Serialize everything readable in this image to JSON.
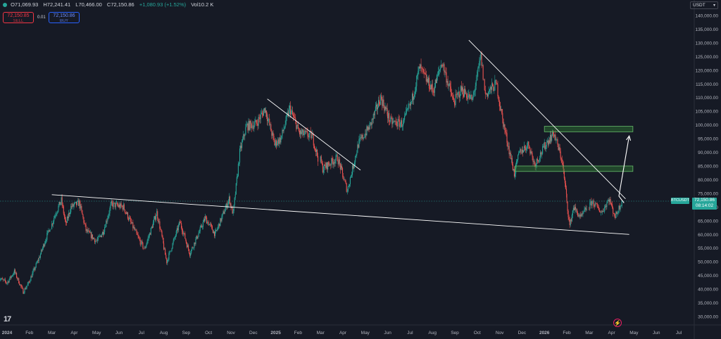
{
  "header": {
    "open": "O71,069.93",
    "high": "H72,241.41",
    "low": "L70,466.00",
    "close": "C72,150.86",
    "change": "+1,080.93 (+1.52%)",
    "volume": "Vol10.2 K"
  },
  "trade": {
    "sell_price": "72,150.85",
    "sell_label": "SELL",
    "spread": "0.01",
    "buy_price": "72,150.86",
    "buy_label": "BUY"
  },
  "currency_select": "USDT",
  "price_tag": {
    "symbol": "BTCUSDT",
    "price": "72,150.86",
    "countdown": "08:14:02"
  },
  "brand": "17",
  "colors": {
    "up": "#26a69a",
    "down": "#ef5350",
    "zone_fill": "#2e7d32",
    "zone_border": "#66bb6a",
    "line": "#ffffff"
  },
  "chart_data": {
    "type": "candlestick",
    "y_ticks": [
      "140,000.00",
      "135,000.00",
      "130,000.00",
      "125,000.00",
      "120,000.00",
      "115,000.00",
      "110,000.00",
      "105,000.00",
      "100,000.00",
      "95,000.00",
      "90,000.00",
      "85,000.00",
      "80,000.00",
      "75,000.00",
      "70,000.00",
      "65,000.00",
      "60,000.00",
      "55,000.00",
      "50,000.00",
      "45,000.00",
      "40,000.00",
      "35,000.00",
      "30,000.00"
    ],
    "y_range": [
      27500,
      142000
    ],
    "x_ticks": [
      "2024",
      "Feb",
      "Mar",
      "Apr",
      "May",
      "Jun",
      "Jul",
      "Aug",
      "Sep",
      "Oct",
      "Nov",
      "Dec",
      "2025",
      "Feb",
      "Mar",
      "Apr",
      "May",
      "Jun",
      "Jul",
      "Aug",
      "Sep",
      "Oct",
      "Nov",
      "Dec",
      "2026",
      "Feb",
      "Mar",
      "Apr",
      "May",
      "Jun",
      "Jul"
    ],
    "x_range": [
      "2024-01",
      "2026-07"
    ],
    "current_price": 72150.86,
    "price_path": [
      [
        "2023-12-20",
        44000
      ],
      [
        "2024-01-01",
        42300
      ],
      [
        "2024-01-11",
        46500
      ],
      [
        "2024-01-23",
        39000
      ],
      [
        "2024-02-01",
        43000
      ],
      [
        "2024-02-15",
        52000
      ],
      [
        "2024-02-28",
        62000
      ],
      [
        "2024-03-05",
        67000
      ],
      [
        "2024-03-14",
        72500
      ],
      [
        "2024-03-20",
        63500
      ],
      [
        "2024-03-27",
        70000
      ],
      [
        "2024-04-08",
        71500
      ],
      [
        "2024-04-17",
        61500
      ],
      [
        "2024-05-01",
        57500
      ],
      [
        "2024-05-10",
        61000
      ],
      [
        "2024-05-21",
        71000
      ],
      [
        "2024-06-07",
        70000
      ],
      [
        "2024-06-24",
        60500
      ],
      [
        "2024-07-05",
        54500
      ],
      [
        "2024-07-22",
        68000
      ],
      [
        "2024-08-05",
        50000
      ],
      [
        "2024-08-23",
        64500
      ],
      [
        "2024-09-06",
        53000
      ],
      [
        "2024-09-27",
        66000
      ],
      [
        "2024-10-10",
        60000
      ],
      [
        "2024-10-29",
        73000
      ],
      [
        "2024-11-04",
        67500
      ],
      [
        "2024-11-13",
        90000
      ],
      [
        "2024-11-22",
        99500
      ],
      [
        "2024-12-05",
        100500
      ],
      [
        "2024-12-17",
        106000
      ],
      [
        "2024-12-30",
        93000
      ],
      [
        "2025-01-08",
        95000
      ],
      [
        "2025-01-20",
        106000
      ],
      [
        "2025-02-03",
        97000
      ],
      [
        "2025-02-20",
        96000
      ],
      [
        "2025-03-04",
        84000
      ],
      [
        "2025-03-24",
        88000
      ],
      [
        "2025-04-07",
        76000
      ],
      [
        "2025-04-22",
        93000
      ],
      [
        "2025-05-08",
        100000
      ],
      [
        "2025-05-22",
        110000
      ],
      [
        "2025-06-05",
        101000
      ],
      [
        "2025-06-22",
        100500
      ],
      [
        "2025-07-03",
        108500
      ],
      [
        "2025-07-14",
        121000
      ],
      [
        "2025-07-22",
        117000
      ],
      [
        "2025-08-02",
        112500
      ],
      [
        "2025-08-14",
        123000
      ],
      [
        "2025-08-30",
        108000
      ],
      [
        "2025-09-10",
        113000
      ],
      [
        "2025-09-25",
        109000
      ],
      [
        "2025-10-06",
        125000
      ],
      [
        "2025-10-12",
        111000
      ],
      [
        "2025-10-27",
        115000
      ],
      [
        "2025-11-05",
        102000
      ],
      [
        "2025-11-21",
        82000
      ],
      [
        "2025-11-28",
        90000
      ],
      [
        "2025-12-10",
        93000
      ],
      [
        "2025-12-18",
        85500
      ],
      [
        "2026-01-05",
        94000
      ],
      [
        "2026-01-14",
        97000
      ],
      [
        "2026-01-25",
        87000
      ],
      [
        "2026-02-05",
        63000
      ],
      [
        "2026-02-10",
        70000
      ],
      [
        "2026-02-20",
        66000
      ],
      [
        "2026-03-05",
        72000
      ],
      [
        "2026-03-18",
        68000
      ],
      [
        "2026-03-28",
        73000
      ],
      [
        "2026-04-06",
        66500
      ],
      [
        "2026-04-15",
        72150.86
      ]
    ],
    "drawings": {
      "trendlines": [
        {
          "from": [
            "2024-03-01",
            74500
          ],
          "to": [
            "2026-04-25",
            60000
          ]
        },
        {
          "from": [
            "2024-12-20",
            109500
          ],
          "to": [
            "2025-04-25",
            83500
          ]
        },
        {
          "from": [
            "2025-09-20",
            131000
          ],
          "to": [
            "2026-04-20",
            73000
          ]
        }
      ],
      "zones": [
        {
          "from": "2026-01-01",
          "to": "2026-04-30",
          "low": 97500,
          "high": 99500
        },
        {
          "from": "2025-11-22",
          "to": "2026-04-30",
          "low": 83000,
          "high": 85000
        }
      ],
      "projection_arrow": [
        [
          "2026-04-18",
          71500
        ],
        [
          "2026-04-11",
          74000
        ],
        [
          "2026-04-25",
          96000
        ]
      ]
    }
  }
}
